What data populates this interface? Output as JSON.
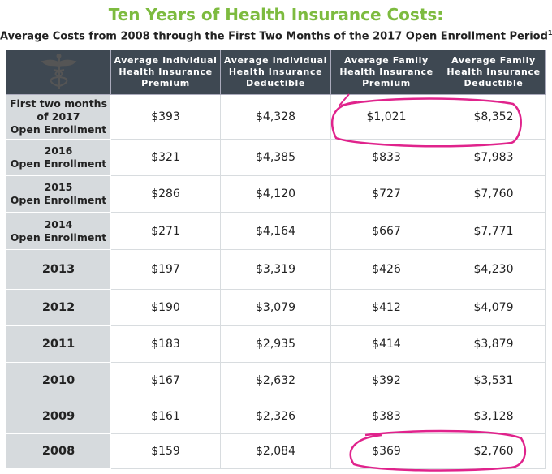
{
  "title": "Ten Years of Health Insurance Costs:",
  "subtitle": "Average Costs from 2008 through the First Two Months of the 2017 Open Enrollment Period",
  "subtitle_note": "1",
  "table": {
    "headers": [
      [
        "Average Individual",
        "Health Insurance",
        "Premium"
      ],
      [
        "Average Individual",
        "Health Insurance",
        "Deductible"
      ],
      [
        "Average Family",
        "Health Insurance",
        "Premium"
      ],
      [
        "Average Family",
        "Health Insurance",
        "Deductible"
      ]
    ],
    "rows": [
      {
        "label": [
          "First two months",
          "of 2017",
          "Open Enrollment"
        ],
        "cells": [
          "$393",
          "$4,328",
          "$1,021",
          "$8,352"
        ]
      },
      {
        "label": [
          "2016",
          "Open Enrollment"
        ],
        "cells": [
          "$321",
          "$4,385",
          "$833",
          "$7,983"
        ]
      },
      {
        "label": [
          "2015",
          "Open Enrollment"
        ],
        "cells": [
          "$286",
          "$4,120",
          "$727",
          "$7,760"
        ]
      },
      {
        "label": [
          "2014",
          "Open Enrollment"
        ],
        "cells": [
          "$271",
          "$4,164",
          "$667",
          "$7,771"
        ]
      },
      {
        "label": [
          "2013"
        ],
        "cells": [
          "$197",
          "$3,319",
          "$426",
          "$4,230"
        ]
      },
      {
        "label": [
          "2012"
        ],
        "cells": [
          "$190",
          "$3,079",
          "$412",
          "$4,079"
        ]
      },
      {
        "label": [
          "2011"
        ],
        "cells": [
          "$183",
          "$2,935",
          "$414",
          "$3,879"
        ]
      },
      {
        "label": [
          "2010"
        ],
        "cells": [
          "$167",
          "$2,632",
          "$392",
          "$3,531"
        ]
      },
      {
        "label": [
          "2009"
        ],
        "cells": [
          "$161",
          "$2,326",
          "$383",
          "$3,128"
        ]
      },
      {
        "label": [
          "2008"
        ],
        "cells": [
          "$159",
          "$2,084",
          "$369",
          "$2,760"
        ]
      }
    ]
  }
}
